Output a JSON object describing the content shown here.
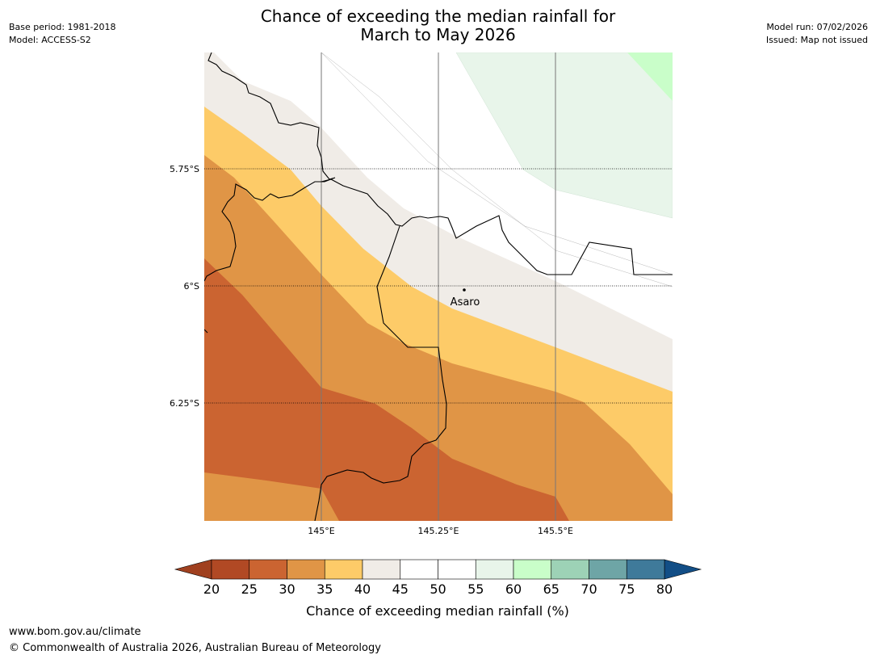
{
  "header": {
    "base_period": "Base period: 1981-2018",
    "model": "Model: ACCESS-S2",
    "title_line1": "Chance of exceeding the median rainfall for",
    "title_line2": "March to May 2026",
    "model_run": "Model run: 07/02/2026",
    "issued": "Issued: Map not issued"
  },
  "map": {
    "lat_labels": [
      "5.75°S",
      "6°S",
      "6.25°S"
    ],
    "lon_labels": [
      "145°E",
      "145.25°E",
      "145.5°E"
    ],
    "place": {
      "name": "Asaro",
      "lat": -6.01,
      "lon": 145.33
    }
  },
  "colorbar": {
    "ticks": [
      "20",
      "25",
      "30",
      "35",
      "40",
      "45",
      "50",
      "55",
      "60",
      "65",
      "70",
      "75",
      "80"
    ],
    "label": "Chance of exceeding median rainfall (%)",
    "under_color": "#a0401f",
    "over_color": "#124e86",
    "bins": [
      {
        "range": "20-25",
        "color": "#b14924"
      },
      {
        "range": "25-30",
        "color": "#cb6431"
      },
      {
        "range": "30-35",
        "color": "#e09546"
      },
      {
        "range": "35-40",
        "color": "#fdcb68"
      },
      {
        "range": "40-45",
        "color": "#f0ece7"
      },
      {
        "range": "45-50",
        "color": "#ffffff"
      },
      {
        "range": "50-55",
        "color": "#ffffff"
      },
      {
        "range": "55-60",
        "color": "#e8f5ea"
      },
      {
        "range": "60-65",
        "color": "#c9fec9"
      },
      {
        "range": "65-70",
        "color": "#9dd2b6"
      },
      {
        "range": "70-75",
        "color": "#6ea5a6"
      },
      {
        "range": "75-80",
        "color": "#3f7a9a"
      }
    ]
  },
  "footer": {
    "url": "www.bom.gov.au/climate",
    "copyright": "© Commonwealth of Australia 2026, Australian Bureau of Meteorology"
  }
}
